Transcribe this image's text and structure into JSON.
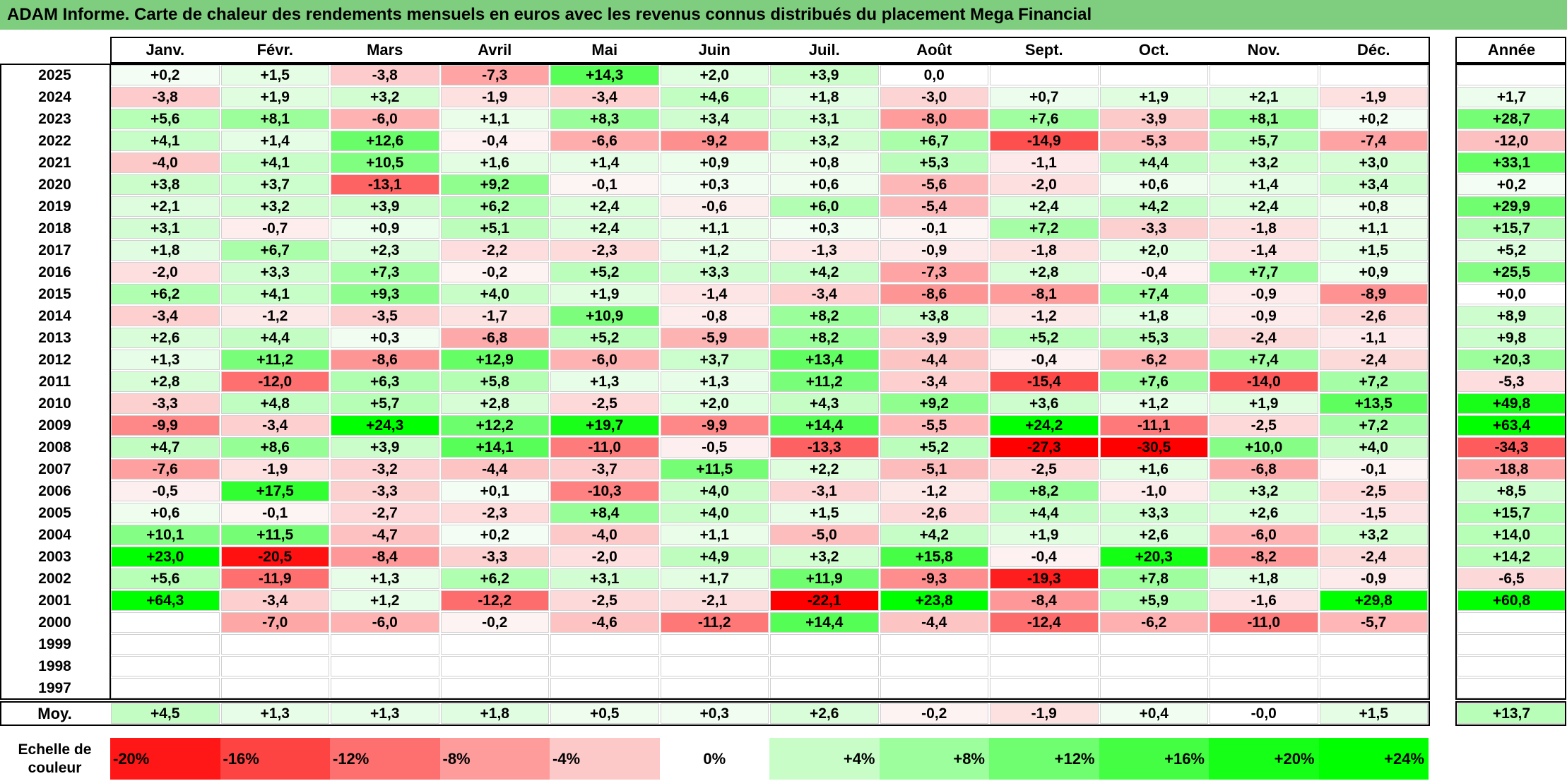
{
  "title": "ADAM Informe. Carte de chaleur des rendements mensuels en euros avec les revenus connus distribués du placement Mega Financial",
  "chart_data": {
    "type": "heatmap",
    "title": "ADAM Informe. Carte de chaleur des rendements mensuels en euros avec les revenus connus distribués du placement Mega Financial",
    "months": [
      "Janv.",
      "Févr.",
      "Mars",
      "Avril",
      "Mai",
      "Juin",
      "Juil.",
      "Août",
      "Sept.",
      "Oct.",
      "Nov.",
      "Déc."
    ],
    "year_header": "Année",
    "rows": [
      {
        "year": "2025",
        "values": [
          "+0,2",
          "+1,5",
          "-3,8",
          "-7,3",
          "+14,3",
          "+2,0",
          "+3,9",
          "0,0",
          "",
          "",
          "",
          ""
        ],
        "annual": ""
      },
      {
        "year": "2024",
        "values": [
          "-3,8",
          "+1,9",
          "+3,2",
          "-1,9",
          "-3,4",
          "+4,6",
          "+1,8",
          "-3,0",
          "+0,7",
          "+1,9",
          "+2,1",
          "-1,9"
        ],
        "annual": "+1,7"
      },
      {
        "year": "2023",
        "values": [
          "+5,6",
          "+8,1",
          "-6,0",
          "+1,1",
          "+8,3",
          "+3,4",
          "+3,1",
          "-8,0",
          "+7,6",
          "-3,9",
          "+8,1",
          "+0,2"
        ],
        "annual": "+28,7"
      },
      {
        "year": "2022",
        "values": [
          "+4,1",
          "+1,4",
          "+12,6",
          "-0,4",
          "-6,6",
          "-9,2",
          "+3,2",
          "+6,7",
          "-14,9",
          "-5,3",
          "+5,7",
          "-7,4"
        ],
        "annual": "-12,0"
      },
      {
        "year": "2021",
        "values": [
          "-4,0",
          "+4,1",
          "+10,5",
          "+1,6",
          "+1,4",
          "+0,9",
          "+0,8",
          "+5,3",
          "-1,1",
          "+4,4",
          "+3,2",
          "+3,0"
        ],
        "annual": "+33,1"
      },
      {
        "year": "2020",
        "values": [
          "+3,8",
          "+3,7",
          "-13,1",
          "+9,2",
          "-0,1",
          "+0,3",
          "+0,6",
          "-5,6",
          "-2,0",
          "+0,6",
          "+1,4",
          "+3,4"
        ],
        "annual": "+0,2"
      },
      {
        "year": "2019",
        "values": [
          "+2,1",
          "+3,2",
          "+3,9",
          "+6,2",
          "+2,4",
          "-0,6",
          "+6,0",
          "-5,4",
          "+2,4",
          "+4,2",
          "+2,4",
          "+0,8"
        ],
        "annual": "+29,9"
      },
      {
        "year": "2018",
        "values": [
          "+3,1",
          "-0,7",
          "+0,9",
          "+5,1",
          "+2,4",
          "+1,1",
          "+0,3",
          "-0,1",
          "+7,2",
          "-3,3",
          "-1,8",
          "+1,1"
        ],
        "annual": "+15,7"
      },
      {
        "year": "2017",
        "values": [
          "+1,8",
          "+6,7",
          "+2,3",
          "-2,2",
          "-2,3",
          "+1,2",
          "-1,3",
          "-0,9",
          "-1,8",
          "+2,0",
          "-1,4",
          "+1,5"
        ],
        "annual": "+5,2"
      },
      {
        "year": "2016",
        "values": [
          "-2,0",
          "+3,3",
          "+7,3",
          "-0,2",
          "+5,2",
          "+3,3",
          "+4,2",
          "-7,3",
          "+2,8",
          "-0,4",
          "+7,7",
          "+0,9"
        ],
        "annual": "+25,5"
      },
      {
        "year": "2015",
        "values": [
          "+6,2",
          "+4,1",
          "+9,3",
          "+4,0",
          "+1,9",
          "-1,4",
          "-3,4",
          "-8,6",
          "-8,1",
          "+7,4",
          "-0,9",
          "-8,9"
        ],
        "annual": "+0,0"
      },
      {
        "year": "2014",
        "values": [
          "-3,4",
          "-1,2",
          "-3,5",
          "-1,7",
          "+10,9",
          "-0,8",
          "+8,2",
          "+3,8",
          "-1,2",
          "+1,8",
          "-0,9",
          "-2,6"
        ],
        "annual": "+8,9"
      },
      {
        "year": "2013",
        "values": [
          "+2,6",
          "+4,4",
          "+0,3",
          "-6,8",
          "+5,2",
          "-5,9",
          "+8,2",
          "-3,9",
          "+5,2",
          "+5,3",
          "-2,4",
          "-1,1"
        ],
        "annual": "+9,8"
      },
      {
        "year": "2012",
        "values": [
          "+1,3",
          "+11,2",
          "-8,6",
          "+12,9",
          "-6,0",
          "+3,7",
          "+13,4",
          "-4,4",
          "-0,4",
          "-6,2",
          "+7,4",
          "-2,4"
        ],
        "annual": "+20,3"
      },
      {
        "year": "2011",
        "values": [
          "+2,8",
          "-12,0",
          "+6,3",
          "+5,8",
          "+1,3",
          "+1,3",
          "+11,2",
          "-3,4",
          "-15,4",
          "+7,6",
          "-14,0",
          "+7,2"
        ],
        "annual": "-5,3"
      },
      {
        "year": "2010",
        "values": [
          "-3,3",
          "+4,8",
          "+5,7",
          "+2,8",
          "-2,5",
          "+2,0",
          "+4,3",
          "+9,2",
          "+3,6",
          "+1,2",
          "+1,9",
          "+13,5"
        ],
        "annual": "+49,8"
      },
      {
        "year": "2009",
        "values": [
          "-9,9",
          "-3,4",
          "+24,3",
          "+12,2",
          "+19,7",
          "-9,9",
          "+14,4",
          "-5,5",
          "+24,2",
          "-11,1",
          "-2,5",
          "+7,2"
        ],
        "annual": "+63,4"
      },
      {
        "year": "2008",
        "values": [
          "+4,7",
          "+8,6",
          "+3,9",
          "+14,1",
          "-11,0",
          "-0,5",
          "-13,3",
          "+5,2",
          "-27,3",
          "-30,5",
          "+10,0",
          "+4,0"
        ],
        "annual": "-34,3"
      },
      {
        "year": "2007",
        "values": [
          "-7,6",
          "-1,9",
          "-3,2",
          "-4,4",
          "-3,7",
          "+11,5",
          "+2,2",
          "-5,1",
          "-2,5",
          "+1,6",
          "-6,8",
          "-0,1"
        ],
        "annual": "-18,8"
      },
      {
        "year": "2006",
        "values": [
          "-0,5",
          "+17,5",
          "-3,3",
          "+0,1",
          "-10,3",
          "+4,0",
          "-3,1",
          "-1,2",
          "+8,2",
          "-1,0",
          "+3,2",
          "-2,5"
        ],
        "annual": "+8,5"
      },
      {
        "year": "2005",
        "values": [
          "+0,6",
          "-0,1",
          "-2,7",
          "-2,3",
          "+8,4",
          "+4,0",
          "+1,5",
          "-2,6",
          "+4,4",
          "+3,3",
          "+2,6",
          "-1,5"
        ],
        "annual": "+15,7"
      },
      {
        "year": "2004",
        "values": [
          "+10,1",
          "+11,5",
          "-4,7",
          "+0,2",
          "-4,0",
          "+1,1",
          "-5,0",
          "+4,2",
          "+1,9",
          "+2,6",
          "-6,0",
          "+3,2"
        ],
        "annual": "+14,0"
      },
      {
        "year": "2003",
        "values": [
          "+23,0",
          "-20,5",
          "-8,4",
          "-3,3",
          "-2,0",
          "+4,9",
          "+3,2",
          "+15,8",
          "-0,4",
          "+20,3",
          "-8,2",
          "-2,4"
        ],
        "annual": "+14,2"
      },
      {
        "year": "2002",
        "values": [
          "+5,6",
          "-11,9",
          "+1,3",
          "+6,2",
          "+3,1",
          "+1,7",
          "+11,9",
          "-9,3",
          "-19,3",
          "+7,8",
          "+1,8",
          "-0,9"
        ],
        "annual": "-6,5"
      },
      {
        "year": "2001",
        "values": [
          "+64,3",
          "-3,4",
          "+1,2",
          "-12,2",
          "-2,5",
          "-2,1",
          "-22,1",
          "+23,8",
          "-8,4",
          "+5,9",
          "-1,6",
          "+29,8"
        ],
        "annual": "+60,8"
      },
      {
        "year": "2000",
        "values": [
          "",
          "-7,0",
          "-6,0",
          "-0,2",
          "-4,6",
          "-11,2",
          "+14,4",
          "-4,4",
          "-12,4",
          "-6,2",
          "-11,0",
          "-5,7"
        ],
        "annual": ""
      },
      {
        "year": "1999",
        "values": [
          "",
          "",
          "",
          "",
          "",
          "",
          "",
          "",
          "",
          "",
          "",
          ""
        ],
        "annual": ""
      },
      {
        "year": "1998",
        "values": [
          "",
          "",
          "",
          "",
          "",
          "",
          "",
          "",
          "",
          "",
          "",
          ""
        ],
        "annual": ""
      },
      {
        "year": "1997",
        "values": [
          "",
          "",
          "",
          "",
          "",
          "",
          "",
          "",
          "",
          "",
          "",
          ""
        ],
        "annual": ""
      }
    ],
    "average": {
      "label": "Moy.",
      "values": [
        "+4,5",
        "+1,3",
        "+1,3",
        "+1,8",
        "+0,5",
        "+0,3",
        "+2,6",
        "-0,2",
        "-1,9",
        "+0,4",
        "-0,0",
        "+1,5"
      ],
      "annual": "+13,7"
    },
    "scale": {
      "label_line1": "Echelle de",
      "label_line2": "couleur",
      "items": [
        {
          "label": "-20%",
          "value": -20,
          "align": "left"
        },
        {
          "label": "-16%",
          "value": -16,
          "align": "left"
        },
        {
          "label": "-12%",
          "value": -12,
          "align": "left"
        },
        {
          "label": "-8%",
          "value": -8,
          "align": "left"
        },
        {
          "label": "-4%",
          "value": -4,
          "align": "left"
        },
        {
          "label": "0%",
          "value": 0,
          "align": "center"
        },
        {
          "label": "+4%",
          "value": 4,
          "align": "right"
        },
        {
          "label": "+8%",
          "value": 8,
          "align": "right"
        },
        {
          "label": "+12%",
          "value": 12,
          "align": "right"
        },
        {
          "label": "+16%",
          "value": 16,
          "align": "right"
        },
        {
          "label": "+20%",
          "value": 20,
          "align": "right"
        },
        {
          "label": "+24%",
          "value": 24,
          "align": "right"
        }
      ]
    },
    "colors": {
      "negative_max": "#ff0000",
      "positive_max": "#00ff00",
      "zero": "#ffffff",
      "title_background": "#7fce7f"
    }
  }
}
